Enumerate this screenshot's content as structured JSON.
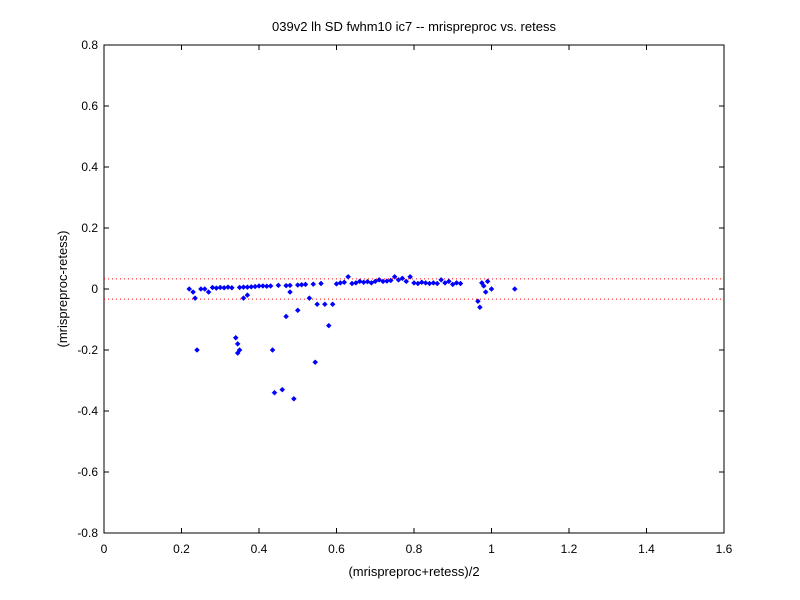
{
  "chart_data": {
    "type": "scatter",
    "title": "039v2 lh SD fwhm10 ic7 -- mrispreproc vs. retess",
    "xlabel": "(mrispreproc+retess)/2",
    "ylabel": "(mrispreproc-retess)",
    "xlim": [
      0,
      1.6
    ],
    "ylim": [
      -0.8,
      0.8
    ],
    "xticks": [
      0,
      0.2,
      0.4,
      0.6,
      0.8,
      1,
      1.2,
      1.4,
      1.6
    ],
    "yticks": [
      -0.8,
      -0.6,
      -0.4,
      -0.2,
      0,
      0.2,
      0.4,
      0.6,
      0.8
    ],
    "xtick_labels": [
      "0",
      "0.2",
      "0.4",
      "0.6",
      "0.8",
      "1",
      "1.2",
      "1.4",
      "1.6"
    ],
    "ytick_labels": [
      "-0.8",
      "-0.6",
      "-0.4",
      "-0.2",
      "0",
      "0.2",
      "0.4",
      "0.6",
      "0.8"
    ],
    "grid": false,
    "series": [
      {
        "marker": "diamond",
        "color": "#0000ff",
        "points": [
          [
            0.22,
            0.0
          ],
          [
            0.23,
            -0.01
          ],
          [
            0.235,
            -0.03
          ],
          [
            0.24,
            -0.2
          ],
          [
            0.25,
            0.0
          ],
          [
            0.26,
            0.0
          ],
          [
            0.27,
            -0.01
          ],
          [
            0.28,
            0.005
          ],
          [
            0.29,
            0.003
          ],
          [
            0.3,
            0.005
          ],
          [
            0.31,
            0.004
          ],
          [
            0.32,
            0.006
          ],
          [
            0.33,
            0.004
          ],
          [
            0.34,
            -0.16
          ],
          [
            0.345,
            -0.18
          ],
          [
            0.345,
            -0.21
          ],
          [
            0.35,
            -0.2
          ],
          [
            0.35,
            0.005
          ],
          [
            0.36,
            0.006
          ],
          [
            0.36,
            -0.03
          ],
          [
            0.37,
            0.006
          ],
          [
            0.37,
            -0.02
          ],
          [
            0.38,
            0.007
          ],
          [
            0.39,
            0.008
          ],
          [
            0.4,
            0.01
          ],
          [
            0.41,
            0.01
          ],
          [
            0.42,
            0.009
          ],
          [
            0.43,
            0.01
          ],
          [
            0.435,
            -0.2
          ],
          [
            0.44,
            -0.34
          ],
          [
            0.45,
            0.012
          ],
          [
            0.46,
            -0.33
          ],
          [
            0.47,
            -0.09
          ],
          [
            0.47,
            0.011
          ],
          [
            0.48,
            0.012
          ],
          [
            0.48,
            -0.01
          ],
          [
            0.49,
            -0.36
          ],
          [
            0.5,
            0.013
          ],
          [
            0.5,
            -0.07
          ],
          [
            0.51,
            0.014
          ],
          [
            0.52,
            0.015
          ],
          [
            0.53,
            -0.03
          ],
          [
            0.54,
            0.016
          ],
          [
            0.545,
            -0.24
          ],
          [
            0.55,
            -0.05
          ],
          [
            0.56,
            0.018
          ],
          [
            0.57,
            -0.05
          ],
          [
            0.58,
            -0.12
          ],
          [
            0.59,
            -0.05
          ],
          [
            0.6,
            0.017
          ],
          [
            0.61,
            0.02
          ],
          [
            0.62,
            0.022
          ],
          [
            0.63,
            0.04
          ],
          [
            0.64,
            0.018
          ],
          [
            0.65,
            0.02
          ],
          [
            0.66,
            0.025
          ],
          [
            0.67,
            0.022
          ],
          [
            0.68,
            0.024
          ],
          [
            0.69,
            0.02
          ],
          [
            0.7,
            0.025
          ],
          [
            0.71,
            0.03
          ],
          [
            0.72,
            0.025
          ],
          [
            0.73,
            0.026
          ],
          [
            0.74,
            0.028
          ],
          [
            0.75,
            0.04
          ],
          [
            0.76,
            0.03
          ],
          [
            0.77,
            0.035
          ],
          [
            0.78,
            0.025
          ],
          [
            0.79,
            0.04
          ],
          [
            0.8,
            0.02
          ],
          [
            0.81,
            0.018
          ],
          [
            0.82,
            0.022
          ],
          [
            0.83,
            0.02
          ],
          [
            0.84,
            0.018
          ],
          [
            0.85,
            0.02
          ],
          [
            0.86,
            0.018
          ],
          [
            0.87,
            0.03
          ],
          [
            0.88,
            0.02
          ],
          [
            0.89,
            0.025
          ],
          [
            0.9,
            0.015
          ],
          [
            0.91,
            0.02
          ],
          [
            0.92,
            0.018
          ],
          [
            0.965,
            -0.04
          ],
          [
            0.97,
            -0.06
          ],
          [
            0.975,
            0.02
          ],
          [
            0.98,
            0.01
          ],
          [
            0.985,
            -0.01
          ],
          [
            0.99,
            0.025
          ],
          [
            1.0,
            0.0
          ],
          [
            1.06,
            0.0
          ]
        ]
      }
    ],
    "reference_lines": [
      {
        "axis": "y",
        "value": 0.033,
        "color": "#ff0000",
        "style": "dotted"
      },
      {
        "axis": "y",
        "value": -0.033,
        "color": "#ff0000",
        "style": "dotted"
      }
    ]
  }
}
